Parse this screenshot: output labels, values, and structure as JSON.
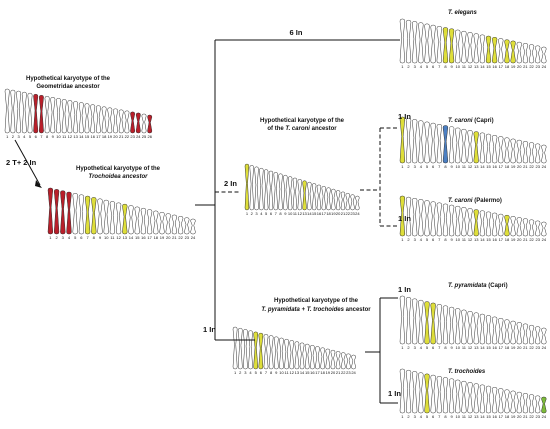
{
  "colors": {
    "outline": "#333333",
    "fill": "#ffffff",
    "red": "#b81f2a",
    "yellow": "#dede3a",
    "blue": "#4b7fc2",
    "green": "#7dbb3a"
  },
  "ancestors": {
    "geometridae": {
      "line1": "Hypothetical karyotype of the",
      "line2": "Geometridae ancestor"
    },
    "trochoidea": {
      "line1": "Hypothetical karyotype of the",
      "line2": "Trochoidea ancestor"
    },
    "caroni": {
      "line1": "Hypothetical karyotype of the",
      "line2_prefix": "of the ",
      "line2_italic": "T. caroni",
      "line2_suffix": " ancestor"
    },
    "pyramidata": {
      "line1": "Hypothetical karyotype of the",
      "line2_italic": "T. pyramidata + T. trochoides",
      "line2_suffix": " ancestor"
    }
  },
  "species": {
    "elegans": {
      "name": "T. elegans",
      "location": ""
    },
    "caroni_capri": {
      "name": "T. caroni",
      "location": " (Capri)"
    },
    "caroni_palermo": {
      "name": "T. caroni",
      "location": " (Palermo)"
    },
    "pyramidata_capri": {
      "name": "T. pyramidata",
      "location": " (Capri)"
    },
    "trochoides": {
      "name": "T. trochoides",
      "location": ""
    }
  },
  "events": {
    "geo_to_troch": "2 T+ 2 In",
    "elegans": "6 In",
    "caroni_anc": "2 In",
    "caroni_capri": "1 In",
    "caroni_palermo": "1 In",
    "pyramidata_anc": "1 In",
    "pyramidata_capri": "1 In",
    "trochoides": "1 In"
  },
  "karyotypes": [
    {
      "id": "geometridae",
      "count": 26,
      "highlight": {
        "6": "red",
        "7": "red",
        "23": "red",
        "24": "red",
        "26": "red"
      }
    },
    {
      "id": "trochoidea",
      "count": 24,
      "highlight": {
        "1": "red",
        "2": "red",
        "3": "red",
        "4": "red",
        "7": "yellow",
        "8": "yellow",
        "13": "yellow"
      }
    },
    {
      "id": "elegans",
      "count": 24,
      "highlight": {
        "8": "yellow",
        "9": "yellow",
        "15": "yellow",
        "16": "yellow",
        "18": "yellow",
        "19": "yellow"
      }
    },
    {
      "id": "caroni_anc",
      "count": 24,
      "highlight": {
        "1": "yellow",
        "13": "yellow"
      }
    },
    {
      "id": "caroni_capri",
      "count": 24,
      "highlight": {
        "1": "yellow",
        "8": "blue",
        "13": "yellow"
      }
    },
    {
      "id": "caroni_palermo",
      "count": 24,
      "highlight": {
        "1": "yellow",
        "13": "yellow",
        "18": "yellow"
      }
    },
    {
      "id": "pyramidata_anc",
      "count": 24,
      "highlight": {
        "5": "yellow",
        "6": "yellow"
      }
    },
    {
      "id": "pyramidata_capri",
      "count": 24,
      "highlight": {
        "5": "yellow",
        "6": "yellow"
      }
    },
    {
      "id": "trochoides",
      "count": 24,
      "highlight": {
        "5": "yellow",
        "24": "green"
      }
    }
  ]
}
